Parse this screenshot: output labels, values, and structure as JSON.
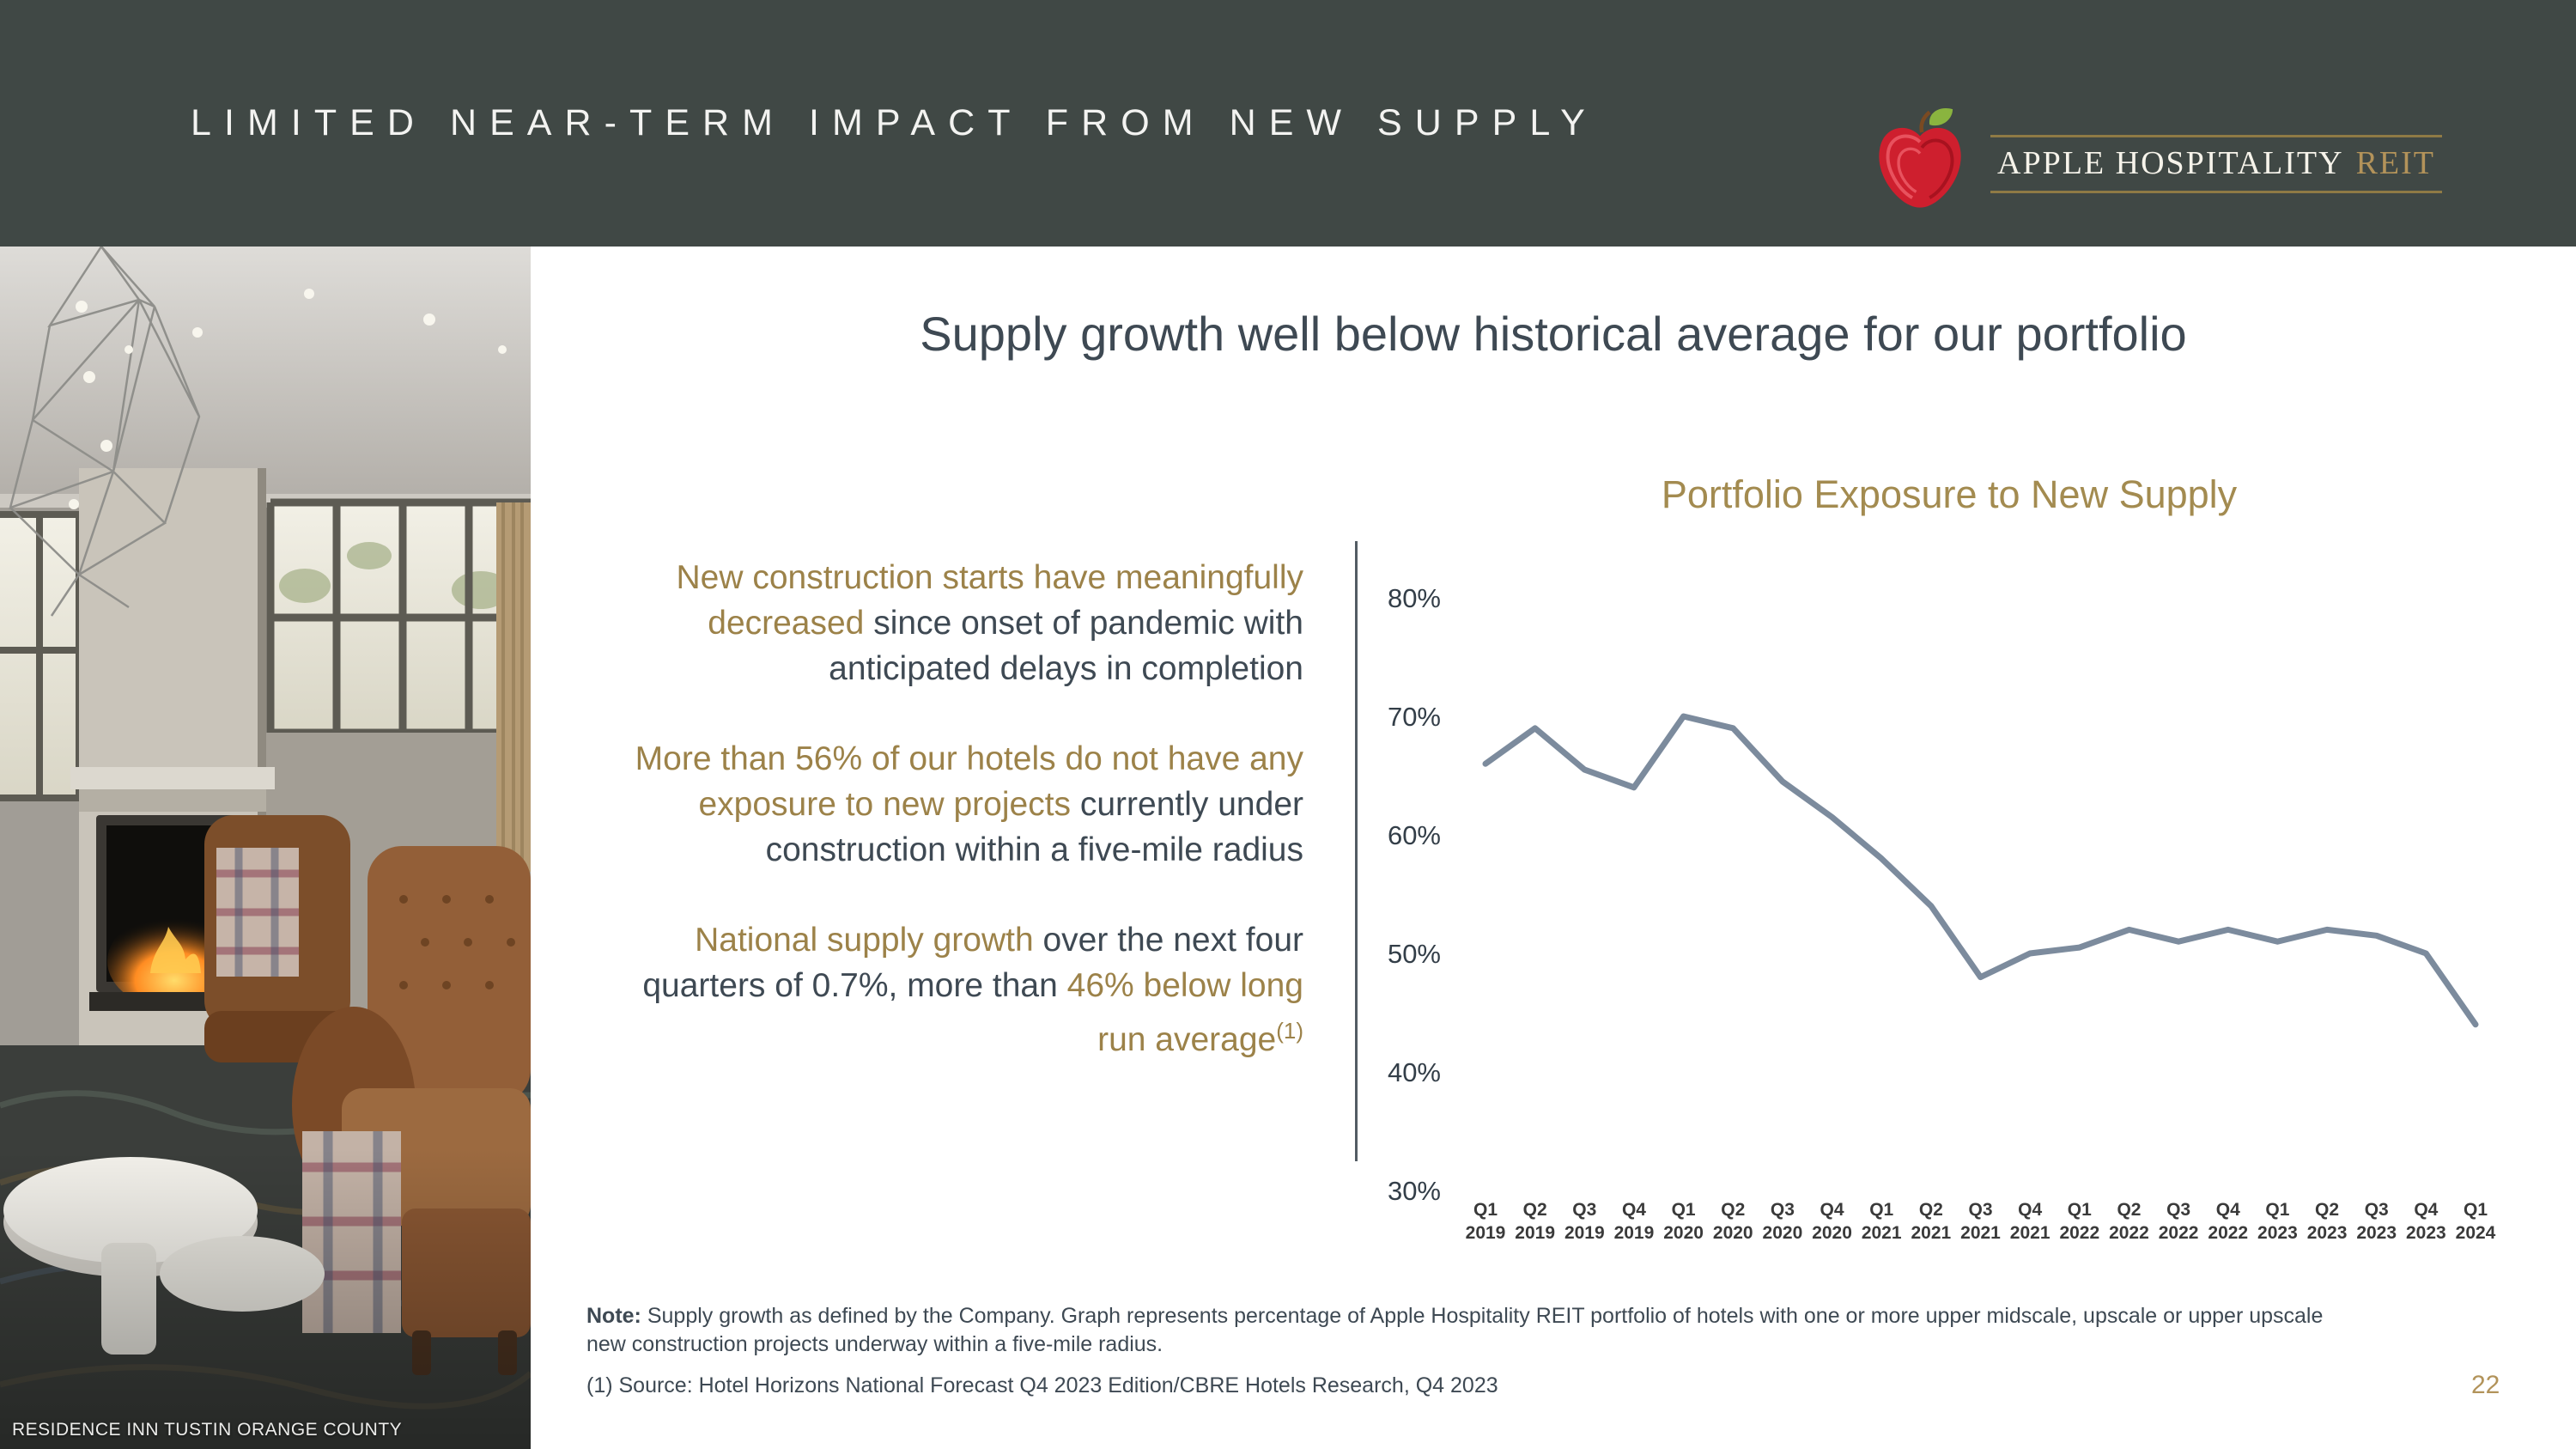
{
  "header": {
    "title": "LIMITED NEAR-TERM IMPACT FROM NEW SUPPLY",
    "logo": {
      "primary": "APPLE HOSPITALITY",
      "accent": "REIT"
    }
  },
  "photo": {
    "caption": "RESIDENCE INN TUSTIN ORANGE COUNTY"
  },
  "content": {
    "heading": "Supply growth well below historical average for our portfolio",
    "bullets": [
      {
        "segments": [
          {
            "style": "gold",
            "text": "New construction starts have meaningfully decreased"
          },
          {
            "style": "dark",
            "text": " since onset of pandemic with anticipated delays in completion"
          }
        ]
      },
      {
        "segments": [
          {
            "style": "gold",
            "text": "More than 56% of our hotels do not have any exposure to new projects"
          },
          {
            "style": "dark",
            "text": " currently under construction within a five-mile radius"
          }
        ]
      },
      {
        "segments": [
          {
            "style": "gold",
            "text": "National supply growth"
          },
          {
            "style": "dark",
            "text": " over the next four quarters of 0.7%, more than "
          },
          {
            "style": "gold",
            "text": "46% below long run average"
          },
          {
            "style": "sup",
            "text": "(1)"
          }
        ]
      }
    ]
  },
  "footnotes": {
    "note_label": "Note:",
    "note_text": " Supply growth as defined by the Company. Graph represents percentage of Apple Hospitality REIT portfolio of hotels with one or more upper midscale, upscale or upper upscale new construction projects underway within a five-mile radius.",
    "source": "(1) Source: Hotel Horizons National Forecast Q4 2023 Edition/CBRE Hotels Research, Q4 2023"
  },
  "page_number": "22",
  "colors": {
    "header_bg": "#404845",
    "gold": "#9c8249",
    "dark_text": "#3e4953",
    "chart_line": "#7c8b9d"
  },
  "chart_data": {
    "type": "line",
    "title": "Portfolio Exposure to New Supply",
    "categories": [
      "Q1 2019",
      "Q2 2019",
      "Q3 2019",
      "Q4 2019",
      "Q1 2020",
      "Q2 2020",
      "Q3 2020",
      "Q4 2020",
      "Q1 2021",
      "Q2 2021",
      "Q3 2021",
      "Q4 2021",
      "Q1 2022",
      "Q2 2022",
      "Q3 2022",
      "Q4 2022",
      "Q1 2023",
      "Q2 2023",
      "Q3 2023",
      "Q4 2023",
      "Q1 2024"
    ],
    "values": [
      66,
      69,
      65.5,
      64,
      70,
      69,
      64.5,
      61.5,
      58,
      54,
      48,
      50,
      50.5,
      52,
      51,
      52,
      51,
      52,
      51.5,
      50,
      44
    ],
    "ylim": [
      30,
      80
    ],
    "yticks": [
      80,
      70,
      60,
      50,
      40,
      30
    ],
    "ytick_suffix": "%",
    "xlabel": "",
    "ylabel": "",
    "grid": false,
    "legend": false,
    "line_color": "#7c8b9d"
  }
}
